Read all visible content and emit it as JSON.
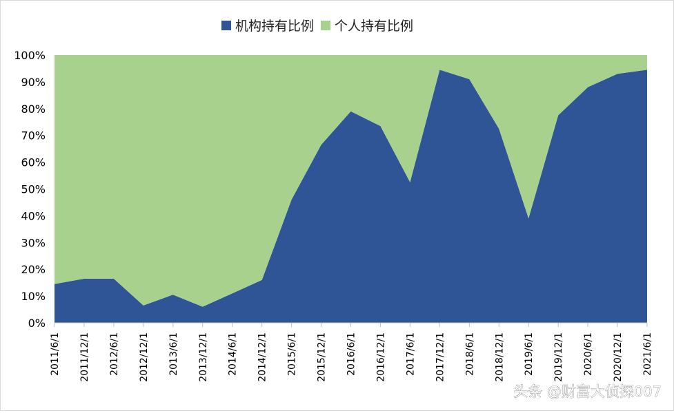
{
  "chart_data": {
    "type": "area",
    "stacked": true,
    "normalized_percent": true,
    "categories": [
      "2011/6/1",
      "2011/12/1",
      "2012/6/1",
      "2012/12/1",
      "2013/6/1",
      "2013/12/1",
      "2014/6/1",
      "2014/12/1",
      "2015/6/1",
      "2015/12/1",
      "2016/6/1",
      "2016/12/1",
      "2017/6/1",
      "2017/12/1",
      "2018/6/1",
      "2018/12/1",
      "2019/6/1",
      "2019/12/1",
      "2020/6/1",
      "2020/12/1",
      "2021/6/1"
    ],
    "series": [
      {
        "name": "机构持有比例",
        "color": "#2f5597",
        "values": [
          14.5,
          16.5,
          16.5,
          6.5,
          10.5,
          6,
          11,
          16,
          46,
          66.5,
          79,
          73.5,
          52.5,
          94.5,
          91,
          72.5,
          39,
          77.5,
          88,
          93,
          94.5
        ]
      },
      {
        "name": "个人持有比例",
        "color": "#a9d18e",
        "values": [
          85.5,
          83.5,
          83.5,
          93.5,
          89.5,
          94,
          89,
          84,
          54,
          33.5,
          21,
          26.5,
          47.5,
          5.5,
          9,
          27.5,
          61,
          22.5,
          12,
          7,
          5.5
        ]
      }
    ],
    "yticks": [
      "0%",
      "10%",
      "20%",
      "30%",
      "40%",
      "50%",
      "60%",
      "70%",
      "80%",
      "90%",
      "100%"
    ],
    "ylim": [
      0,
      100
    ],
    "title": "",
    "xlabel": "",
    "ylabel": "",
    "legend_position": "top"
  },
  "watermark": "头条 @财富大侦探007"
}
